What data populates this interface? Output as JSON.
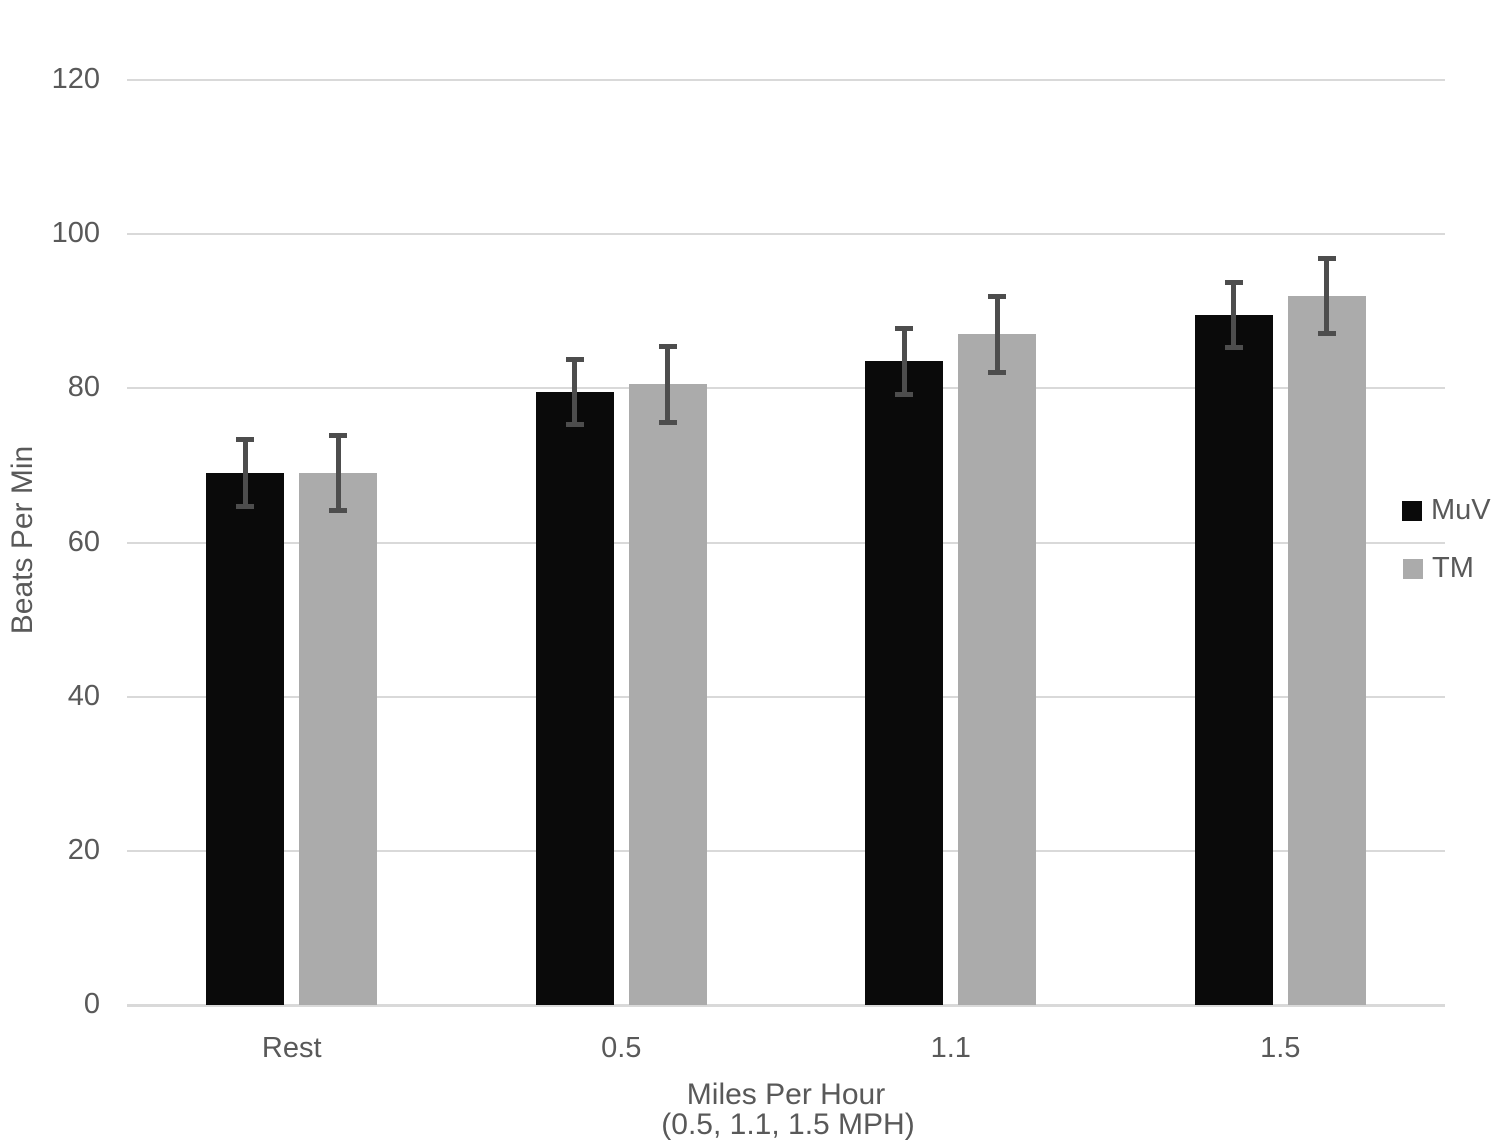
{
  "chart_data": {
    "type": "bar",
    "title": "",
    "categories": [
      "Rest",
      "0.5",
      "1.1",
      "1.5"
    ],
    "series": [
      {
        "name": "MuV",
        "color": "#0a0a0a",
        "values": [
          69,
          79.5,
          83.5,
          89.5
        ],
        "errors": [
          4.4,
          4.3,
          4.3,
          4.3
        ]
      },
      {
        "name": "TM",
        "color": "#ababab",
        "values": [
          69,
          80.5,
          87,
          92
        ],
        "errors": [
          4.9,
          5.0,
          5.0,
          4.9
        ]
      }
    ],
    "xlabel": "Miles Per Hour",
    "ylabel": "Beats Per Min",
    "ylim": [
      0,
      120
    ],
    "yticks": [
      0,
      20,
      40,
      60,
      80,
      100,
      120
    ],
    "grid": true,
    "legend_position": "right",
    "error_bars": true
  },
  "caption_clipped": "(0.5, 1.1, 1.5 MPH)",
  "colors": {
    "bar_muv": "#0a0a0a",
    "bar_tm": "#ababab",
    "error_bar": "#4d4d4d",
    "gridline": "#d9d9d9",
    "text": "#595959",
    "background": "#ffffff"
  }
}
